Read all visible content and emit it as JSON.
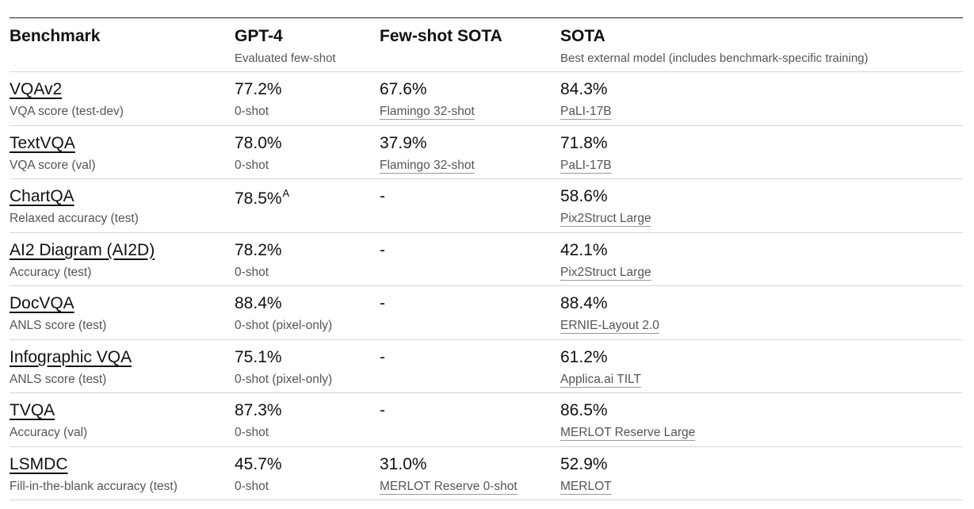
{
  "header": {
    "benchmark": {
      "title": "Benchmark",
      "subtitle": ""
    },
    "gpt4": {
      "title": "GPT-4",
      "subtitle": "Evaluated few-shot"
    },
    "fewshot": {
      "title": "Few-shot SOTA",
      "subtitle": ""
    },
    "sota": {
      "title": "SOTA",
      "subtitle": "Best external model (includes benchmark-specific training)"
    }
  },
  "rows": [
    {
      "benchmark": "VQAv2",
      "metric": "VQA score (test-dev)",
      "gpt4_value": "77.2%",
      "gpt4_note": "0-shot",
      "gpt4_sup": "",
      "fewshot_value": "67.6%",
      "fewshot_model": "Flamingo 32-shot",
      "sota_value": "84.3%",
      "sota_model": "PaLI-17B"
    },
    {
      "benchmark": "TextVQA",
      "metric": "VQA score (val)",
      "gpt4_value": "78.0%",
      "gpt4_note": "0-shot",
      "gpt4_sup": "",
      "fewshot_value": "37.9%",
      "fewshot_model": "Flamingo 32-shot",
      "sota_value": "71.8%",
      "sota_model": "PaLI-17B"
    },
    {
      "benchmark": "ChartQA",
      "metric": "Relaxed accuracy (test)",
      "gpt4_value": "78.5%",
      "gpt4_note": "",
      "gpt4_sup": "A",
      "fewshot_value": "-",
      "fewshot_model": "",
      "sota_value": "58.6%",
      "sota_model": "Pix2Struct Large"
    },
    {
      "benchmark": "AI2 Diagram (AI2D)",
      "metric": "Accuracy (test)",
      "gpt4_value": "78.2%",
      "gpt4_note": "0-shot",
      "gpt4_sup": "",
      "fewshot_value": "-",
      "fewshot_model": "",
      "sota_value": "42.1%",
      "sota_model": "Pix2Struct Large"
    },
    {
      "benchmark": "DocVQA",
      "metric": "ANLS score (test)",
      "gpt4_value": "88.4%",
      "gpt4_note": "0-shot (pixel-only)",
      "gpt4_sup": "",
      "fewshot_value": "-",
      "fewshot_model": "",
      "sota_value": "88.4%",
      "sota_model": "ERNIE-Layout 2.0"
    },
    {
      "benchmark": "Infographic VQA",
      "metric": "ANLS score (test)",
      "gpt4_value": "75.1%",
      "gpt4_note": "0-shot (pixel-only)",
      "gpt4_sup": "",
      "fewshot_value": "-",
      "fewshot_model": "",
      "sota_value": "61.2%",
      "sota_model": "Applica.ai TILT"
    },
    {
      "benchmark": "TVQA",
      "metric": "Accuracy (val)",
      "gpt4_value": "87.3%",
      "gpt4_note": "0-shot",
      "gpt4_sup": "",
      "fewshot_value": "-",
      "fewshot_model": "",
      "sota_value": "86.5%",
      "sota_model": "MERLOT Reserve Large"
    },
    {
      "benchmark": "LSMDC",
      "metric": "Fill-in-the-blank accuracy (test)",
      "gpt4_value": "45.7%",
      "gpt4_note": "0-shot",
      "gpt4_sup": "",
      "fewshot_value": "31.0%",
      "fewshot_model": "MERLOT Reserve 0-shot",
      "sota_value": "52.9%",
      "sota_model": "MERLOT"
    }
  ]
}
